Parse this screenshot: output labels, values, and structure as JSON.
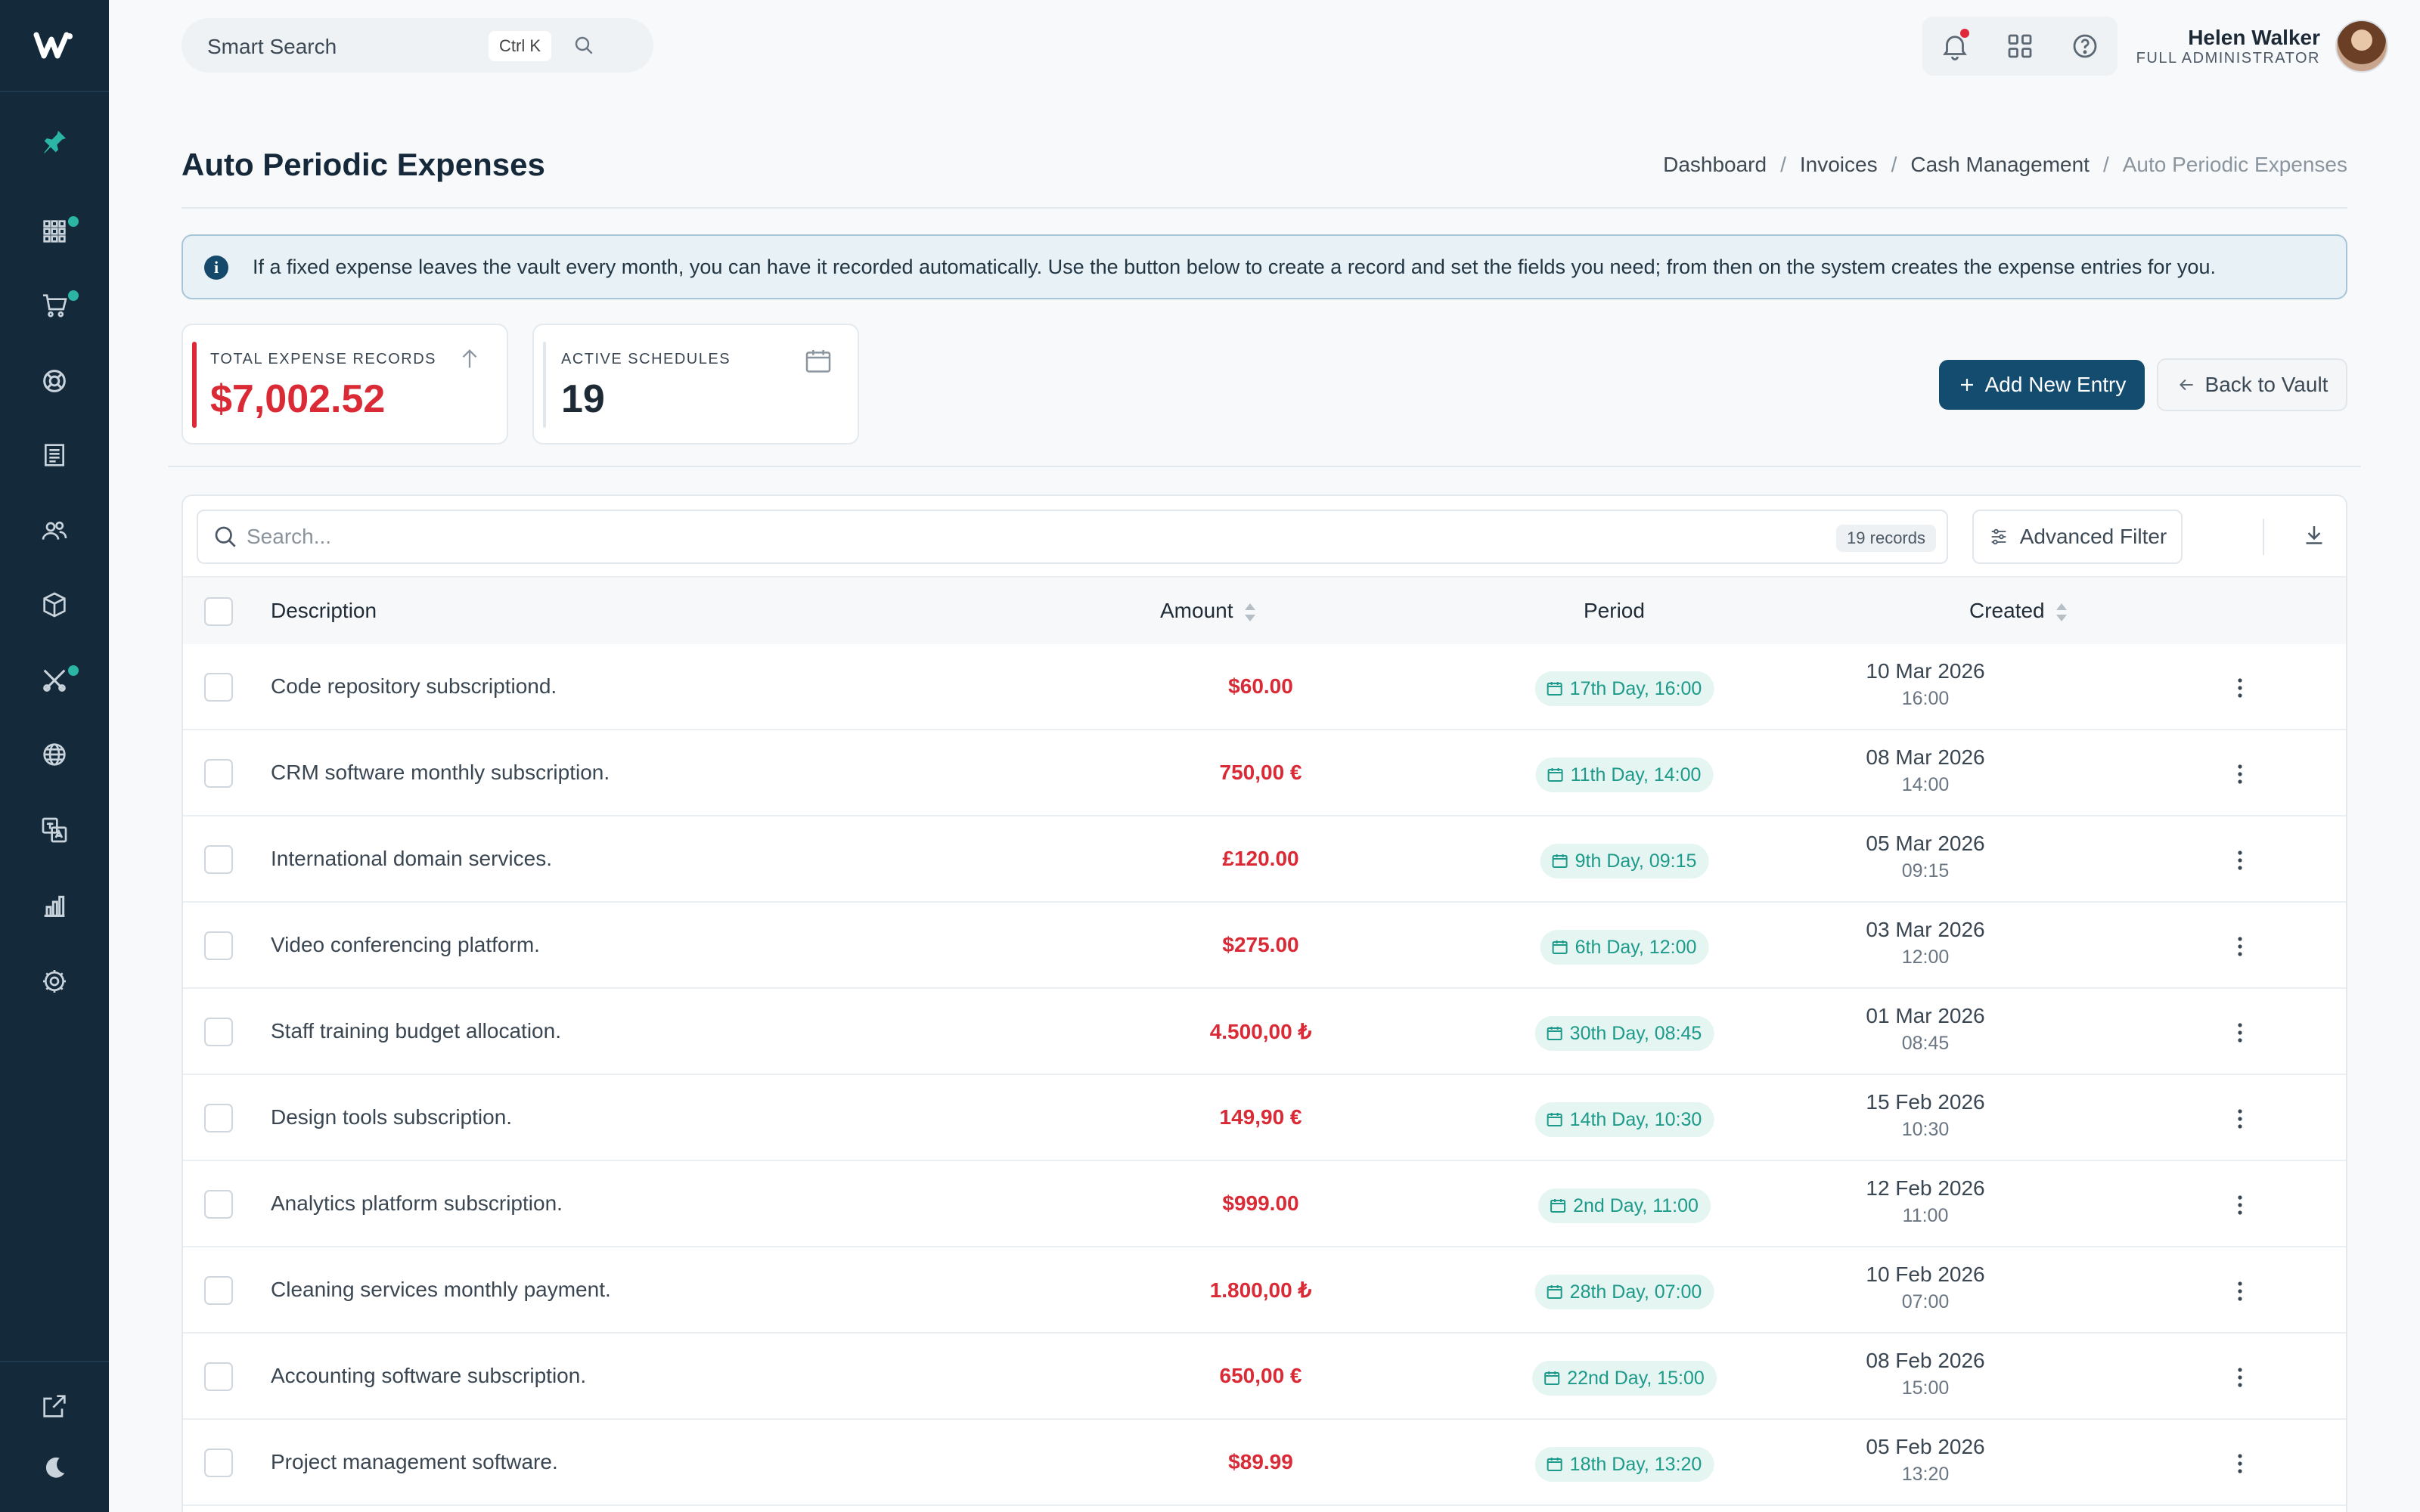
{
  "topbar": {
    "smart_search_label": "Smart Search",
    "shortcut": "Ctrl K",
    "user_name": "Helen Walker",
    "user_role": "FULL ADMINISTRATOR"
  },
  "page": {
    "title": "Auto Periodic Expenses",
    "breadcrumb": [
      "Dashboard",
      "Invoices",
      "Cash Management",
      "Auto Periodic Expenses"
    ]
  },
  "alert": {
    "icon": "info-icon",
    "text": "If a fixed expense leaves the vault every month, you can have it recorded automatically. Use the button below to create a record and set the fields you need; from then on the system creates the expense entries for you."
  },
  "stats": {
    "total": {
      "label": "TOTAL EXPENSE RECORDS",
      "value": "$7,002.52",
      "color": "#d92a36"
    },
    "active": {
      "label": "ACTIVE SCHEDULES",
      "value": "19",
      "color": "#1d2a36"
    }
  },
  "actions": {
    "add_label": "Add New Entry",
    "back_label": "Back to Vault"
  },
  "table": {
    "search_placeholder": "Search...",
    "records_count": "19 records",
    "advanced_filter_label": "Advanced Filter",
    "columns": {
      "description": "Description",
      "amount": "Amount",
      "period": "Period",
      "created": "Created"
    },
    "rows": [
      {
        "description": "Code repository subscriptiond.",
        "amount": "$60.00",
        "period": "17th Day, 16:00",
        "date": "10 Mar 2026",
        "time": "16:00"
      },
      {
        "description": "CRM software monthly subscription.",
        "amount": "750,00 €",
        "period": "11th Day, 14:00",
        "date": "08 Mar 2026",
        "time": "14:00"
      },
      {
        "description": "International domain services.",
        "amount": "£120.00",
        "period": "9th Day, 09:15",
        "date": "05 Mar 2026",
        "time": "09:15"
      },
      {
        "description": "Video conferencing platform.",
        "amount": "$275.00",
        "period": "6th Day, 12:00",
        "date": "03 Mar 2026",
        "time": "12:00"
      },
      {
        "description": "Staff training budget allocation.",
        "amount": "4.500,00 ₺",
        "period": "30th Day, 08:45",
        "date": "01 Mar 2026",
        "time": "08:45"
      },
      {
        "description": "Design tools subscription.",
        "amount": "149,90 €",
        "period": "14th Day, 10:30",
        "date": "15 Feb 2026",
        "time": "10:30"
      },
      {
        "description": "Analytics platform subscription.",
        "amount": "$999.00",
        "period": "2nd Day, 11:00",
        "date": "12 Feb 2026",
        "time": "11:00"
      },
      {
        "description": "Cleaning services monthly payment.",
        "amount": "1.800,00 ₺",
        "period": "28th Day, 07:00",
        "date": "10 Feb 2026",
        "time": "07:00"
      },
      {
        "description": "Accounting software subscription.",
        "amount": "650,00 €",
        "period": "22nd Day, 15:00",
        "date": "08 Feb 2026",
        "time": "15:00"
      },
      {
        "description": "Project management software.",
        "amount": "$89.99",
        "period": "18th Day, 13:20",
        "date": "05 Feb 2026",
        "time": "13:20"
      }
    ]
  },
  "sidebar": {
    "items": [
      "logo-icon",
      "pin-icon",
      "apps-grid-icon",
      "cart-icon",
      "support-icon",
      "ledger-icon",
      "users-icon",
      "package-icon",
      "tools-icon",
      "globe-icon",
      "translate-icon",
      "chart-icon",
      "settings-icon",
      "external-link-icon",
      "moon-icon"
    ]
  },
  "colors": {
    "accent": "#134c6f",
    "teal": "#1d9a8a",
    "danger": "#d92a36",
    "sidebar": "#142a3b"
  }
}
